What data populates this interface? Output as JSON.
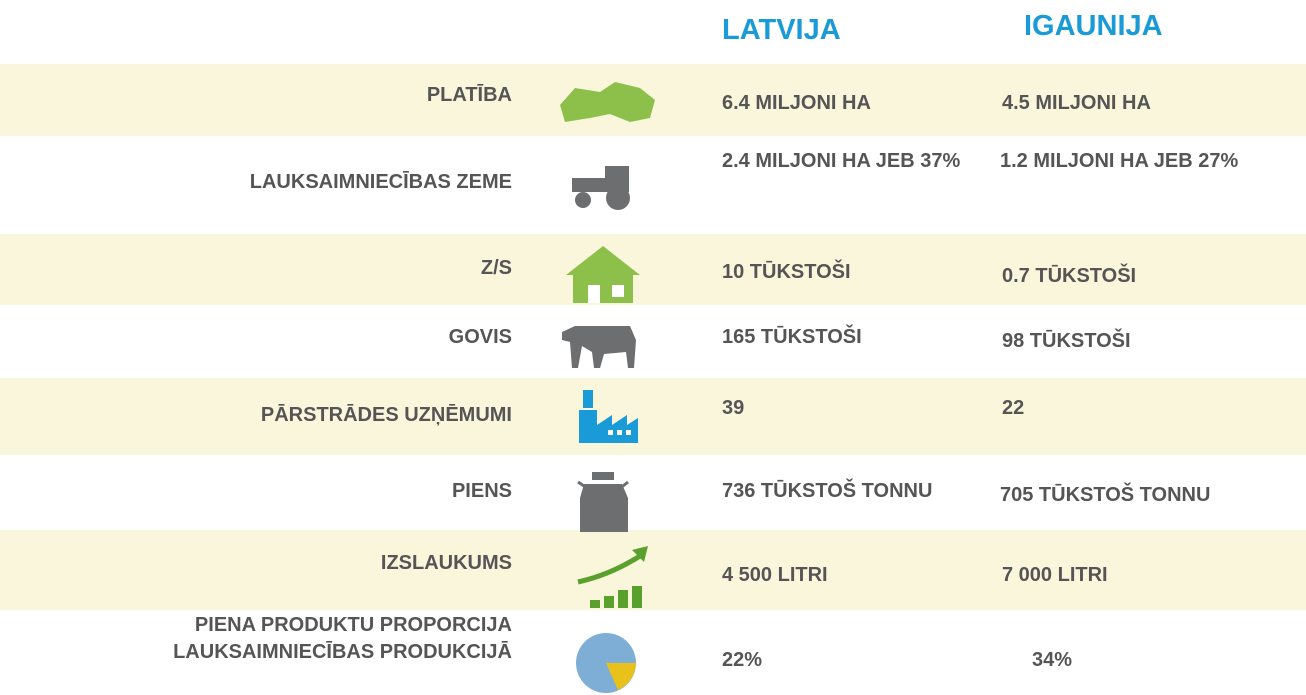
{
  "header": {
    "columns": [
      "LATVIJA",
      "IGAUNIJA"
    ]
  },
  "table": {
    "rows": [
      [
        "PLATĪBA",
        "6.4 MILJONI HA",
        "4.5 MILJONI HA"
      ],
      [
        "LAUKSAIMNIECĪBAS ZEME",
        "2.4 MILJONI HA JEB 37%",
        "1.2 MILJONI HA JEB 27%"
      ],
      [
        "Z/S",
        "10 TŪKSTOŠI",
        "0.7 TŪKSTOŠI"
      ],
      [
        "GOVIS",
        "165 TŪKSTOŠI",
        "98 TŪKSTOŠI"
      ],
      [
        "PĀRSTRĀDES UZŅĒMUMI",
        "39",
        "22"
      ],
      [
        "PIENS",
        "736 TŪKSTOŠ TONNU",
        "705 TŪKSTOŠ TONNU"
      ],
      [
        "IZSLAUKUMS",
        "4 500 LITRI",
        "7 000 LITRI"
      ],
      [
        "PIENA PRODUKTU PROPORCIJA LAUKSAIMNIECĪBAS PRODUKCIJĀ",
        "22%",
        "34%"
      ]
    ]
  }
}
